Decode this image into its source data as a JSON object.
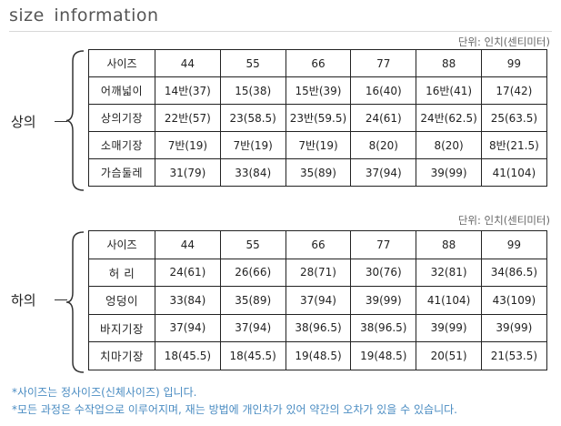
{
  "title": "size  information",
  "unit_label": "단위: 인치(센티미터)",
  "top": {
    "section_label": "상의",
    "header": [
      "사이즈",
      "44",
      "55",
      "66",
      "77",
      "88",
      "99"
    ],
    "rows": [
      {
        "label": "어깨넓이",
        "values": [
          "14반(37)",
          "15(38)",
          "15반(39)",
          "16(40)",
          "16반(41)",
          "17(42)"
        ]
      },
      {
        "label": "상의기장",
        "values": [
          "22반(57)",
          "23(58.5)",
          "23반(59.5)",
          "24(61)",
          "24반(62.5)",
          "25(63.5)"
        ]
      },
      {
        "label": "소매기장",
        "values": [
          "7반(19)",
          "7반(19)",
          "7반(19)",
          "8(20)",
          "8(20)",
          "8반(21.5)"
        ]
      },
      {
        "label": "가슴둘레",
        "values": [
          "31(79)",
          "33(84)",
          "35(89)",
          "37(94)",
          "39(99)",
          "41(104)"
        ]
      }
    ]
  },
  "bottom": {
    "section_label": "하의",
    "header": [
      "사이즈",
      "44",
      "55",
      "66",
      "77",
      "88",
      "99"
    ],
    "rows": [
      {
        "label": "허  리",
        "values": [
          "24(61)",
          "26(66)",
          "28(71)",
          "30(76)",
          "32(81)",
          "34(86.5)"
        ]
      },
      {
        "label": "엉덩이",
        "values": [
          "33(84)",
          "35(89)",
          "37(94)",
          "39(99)",
          "41(104)",
          "43(109)"
        ]
      },
      {
        "label": "바지기장",
        "values": [
          "37(94)",
          "37(94)",
          "38(96.5)",
          "38(96.5)",
          "39(99)",
          "39(99)"
        ]
      },
      {
        "label": "치마기장",
        "values": [
          "18(45.5)",
          "18(45.5)",
          "19(48.5)",
          "19(48.5)",
          "20(51)",
          "21(53.5)"
        ]
      }
    ]
  },
  "notes": [
    "*사이즈는 정사이즈(신체사이즈) 입니다.",
    "*모든 과정은 수작업으로 이루어지며,  재는 방법에 개인차가 있어 약간의 오차가 있을 수 있습니다."
  ]
}
